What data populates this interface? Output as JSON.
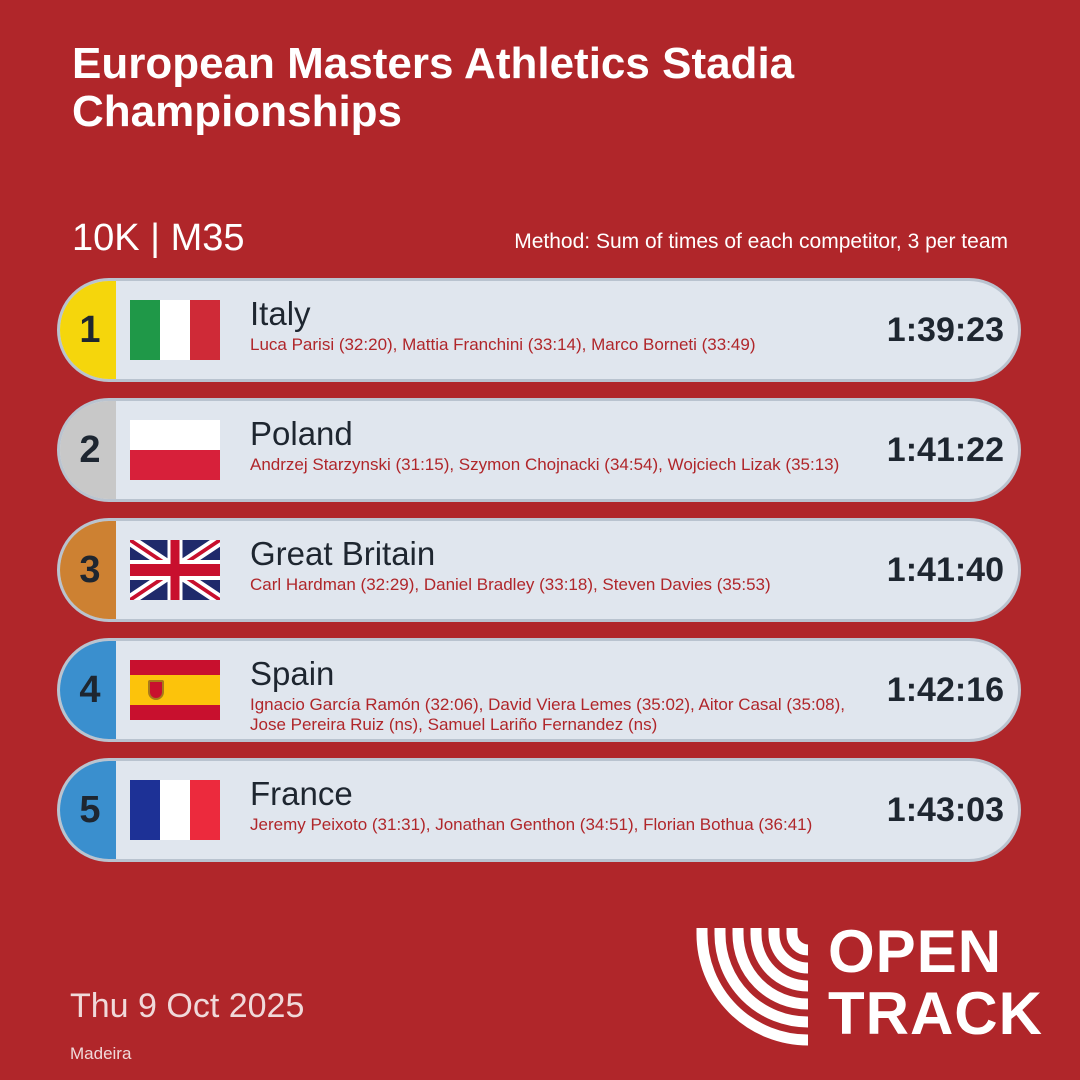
{
  "header": {
    "title": "European Masters Athletics Stadia Championships",
    "subtitle": "10K | M35",
    "method": "Method: Sum of times of each competitor, 3 per team"
  },
  "colors": {
    "background": "#b0262a",
    "gold": "#f5d60c",
    "silver": "#c8c8c8",
    "bronze": "#cd8132",
    "blue": "#3a8fce"
  },
  "results": [
    {
      "rank": "1",
      "team": "Italy",
      "athletes": "Luca Parisi (32:20), Mattia Franchini (33:14), Marco Borneti (33:49)",
      "time": "1:39:23",
      "flag": "italy-flag-icon",
      "medal_color": "#f5d60c"
    },
    {
      "rank": "2",
      "team": "Poland",
      "athletes": "Andrzej Starzynski (31:15), Szymon Chojnacki (34:54), Wojciech Lizak (35:13)",
      "time": "1:41:22",
      "flag": "poland-flag-icon",
      "medal_color": "#c8c8c8"
    },
    {
      "rank": "3",
      "team": "Great Britain",
      "athletes": "Carl Hardman (32:29), Daniel Bradley (33:18), Steven Davies (35:53)",
      "time": "1:41:40",
      "flag": "uk-flag-icon",
      "medal_color": "#cd8132"
    },
    {
      "rank": "4",
      "team": "Spain",
      "athletes": "Ignacio García Ramón (32:06), David Viera Lemes (35:02), Aitor Casal (35:08), Jose Pereira Ruiz (ns), Samuel Lariño Fernandez (ns)",
      "time": "1:42:16",
      "flag": "spain-flag-icon",
      "medal_color": "#3a8fce"
    },
    {
      "rank": "5",
      "team": "France",
      "athletes": "Jeremy Peixoto (31:31), Jonathan Genthon (34:51), Florian Bothua (36:41)",
      "time": "1:43:03",
      "flag": "france-flag-icon",
      "medal_color": "#3a8fce"
    }
  ],
  "footer": {
    "date": "Thu 9 Oct 2025",
    "location": "Madeira"
  },
  "logo": {
    "line1": "OPEN",
    "line2": "TRACK",
    "icon": "opentrack-lanes-icon"
  }
}
